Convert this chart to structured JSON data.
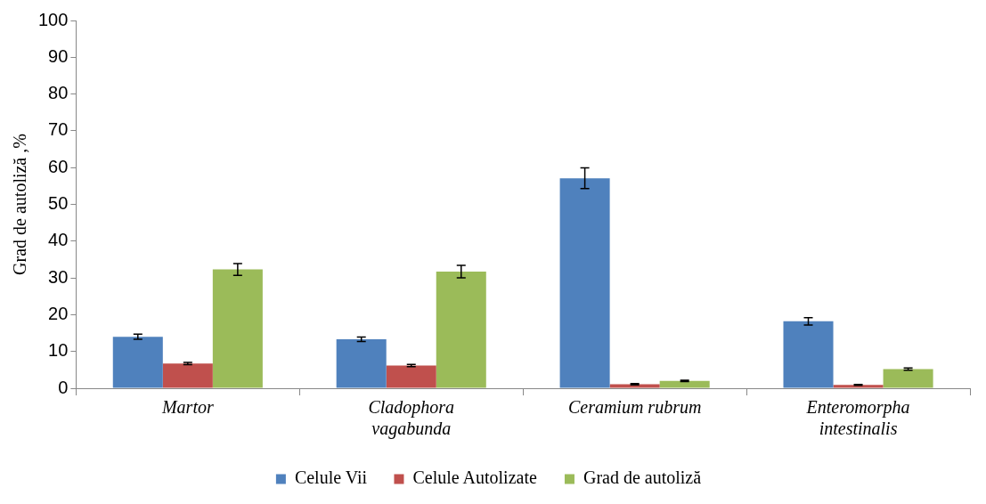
{
  "chart_data": {
    "type": "bar",
    "ylabel": "Grad de autoliză ,%",
    "categories": [
      "Martor",
      "Cladophora vagabunda",
      "Ceramium rubrum",
      "Enteromorpha intestinalis"
    ],
    "series": [
      {
        "name": "Celule Vii",
        "color": "#4f81bd",
        "values": [
          14,
          13.3,
          57.1,
          18.2
        ],
        "errors": [
          0.7,
          0.6,
          2.8,
          1
        ]
      },
      {
        "name": "Celule Autolizate",
        "color": "#c0504d",
        "values": [
          6.7,
          6.2,
          1.1,
          0.9
        ],
        "errors": [
          0.3,
          0.3,
          0.2,
          0.1
        ]
      },
      {
        "name": "Grad de autoliză",
        "color": "#9bbb59",
        "values": [
          32.3,
          31.7,
          2,
          5.2
        ],
        "errors": [
          1.6,
          1.7,
          0.2,
          0.3
        ]
      }
    ],
    "ylim": [
      0,
      100
    ],
    "yticks": [
      0,
      10,
      20,
      30,
      40,
      50,
      60,
      70,
      80,
      90,
      100
    ],
    "grid": false,
    "legend": "bottom"
  }
}
